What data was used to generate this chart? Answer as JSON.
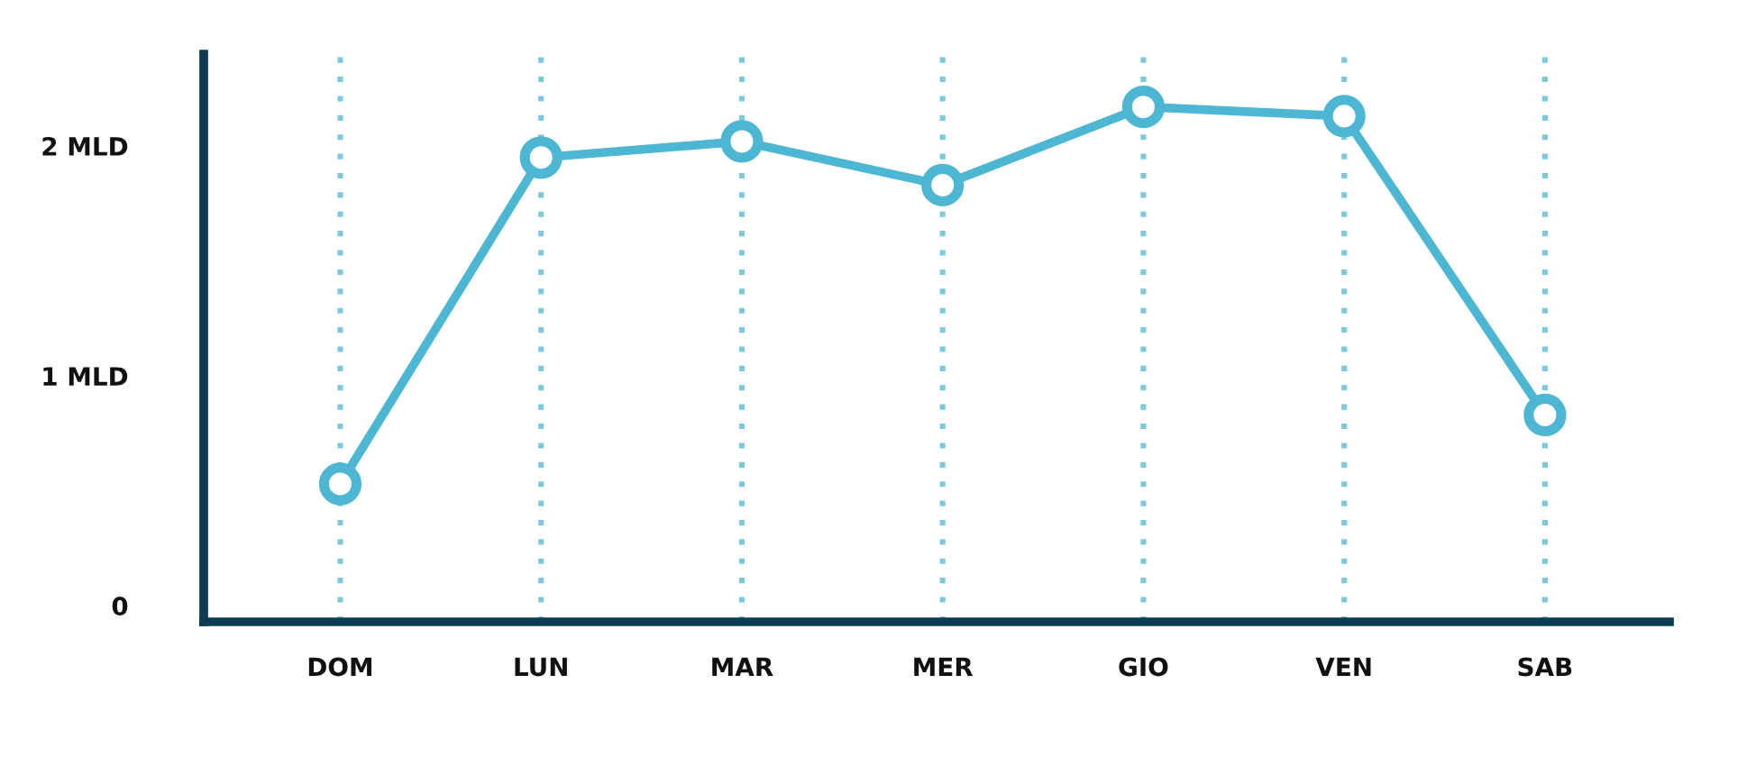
{
  "chart_data": {
    "type": "line",
    "categories": [
      "DOM",
      "LUN",
      "MAR",
      "MER",
      "GIO",
      "VEN",
      "SAB"
    ],
    "series": [
      {
        "color": "#4db6d3",
        "values": [
          0.53,
          1.95,
          2.02,
          1.83,
          2.17,
          2.13,
          0.83
        ]
      }
    ],
    "ylim": [
      -0.07,
      2.4
    ],
    "yticks": [
      0,
      {
        "value": 1,
        "label": "1 MLD"
      },
      {
        "value": 2,
        "label": "2 MLD"
      }
    ],
    "grid": "x",
    "marker": "circle",
    "line_style": "solid"
  }
}
